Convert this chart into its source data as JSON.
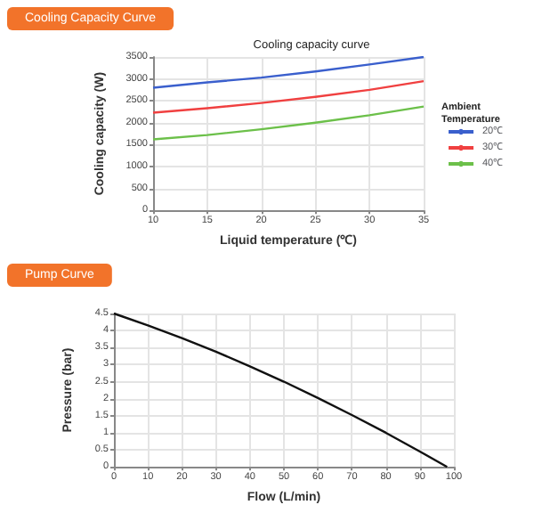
{
  "chart_data": [
    {
      "type": "line",
      "title": "Cooling Capacity Curve",
      "subtitle": "Cooling capacity curve",
      "xlabel": "Liquid temperature (℃)",
      "ylabel": "Cooling capacity (W)",
      "legend_title": "Ambient Temperature",
      "x": [
        10,
        15,
        20,
        25,
        30,
        35
      ],
      "series": [
        {
          "name": "20℃",
          "color": "#3a5fcd",
          "values": [
            2800,
            2920,
            3030,
            3170,
            3330,
            3500
          ]
        },
        {
          "name": "30℃",
          "color": "#f04040",
          "values": [
            2230,
            2330,
            2450,
            2590,
            2750,
            2950
          ]
        },
        {
          "name": "40℃",
          "color": "#6cc04a",
          "values": [
            1620,
            1720,
            1850,
            2000,
            2170,
            2370
          ]
        }
      ],
      "xlim": [
        10,
        35
      ],
      "xticks": [
        10,
        15,
        20,
        25,
        30,
        35
      ],
      "ylim": [
        0,
        3500
      ],
      "yticks": [
        0,
        500,
        1000,
        1500,
        2000,
        2500,
        3000,
        3500
      ],
      "grid": true,
      "legend": "right",
      "marker": "none",
      "line_style": "solid"
    },
    {
      "type": "line",
      "title": "Pump Curve",
      "xlabel": "Flow (L/min)",
      "ylabel": "Pressure (bar)",
      "x": [
        0,
        10,
        20,
        30,
        40,
        50,
        60,
        70,
        80,
        90,
        98
      ],
      "series": [
        {
          "color": "#111111",
          "values": [
            4.5,
            4.15,
            3.78,
            3.38,
            2.95,
            2.5,
            2.02,
            1.52,
            1.0,
            0.45,
            0
          ]
        }
      ],
      "xlim": [
        0,
        100
      ],
      "xticks": [
        0,
        10,
        20,
        30,
        40,
        50,
        60,
        70,
        80,
        90,
        100
      ],
      "ylim": [
        0,
        4.5
      ],
      "yticks": [
        0,
        0.5,
        1,
        1.5,
        2,
        2.5,
        3,
        3.5,
        4,
        4.5
      ],
      "grid": true,
      "legend": false,
      "marker": "none",
      "line_style": "solid"
    }
  ]
}
